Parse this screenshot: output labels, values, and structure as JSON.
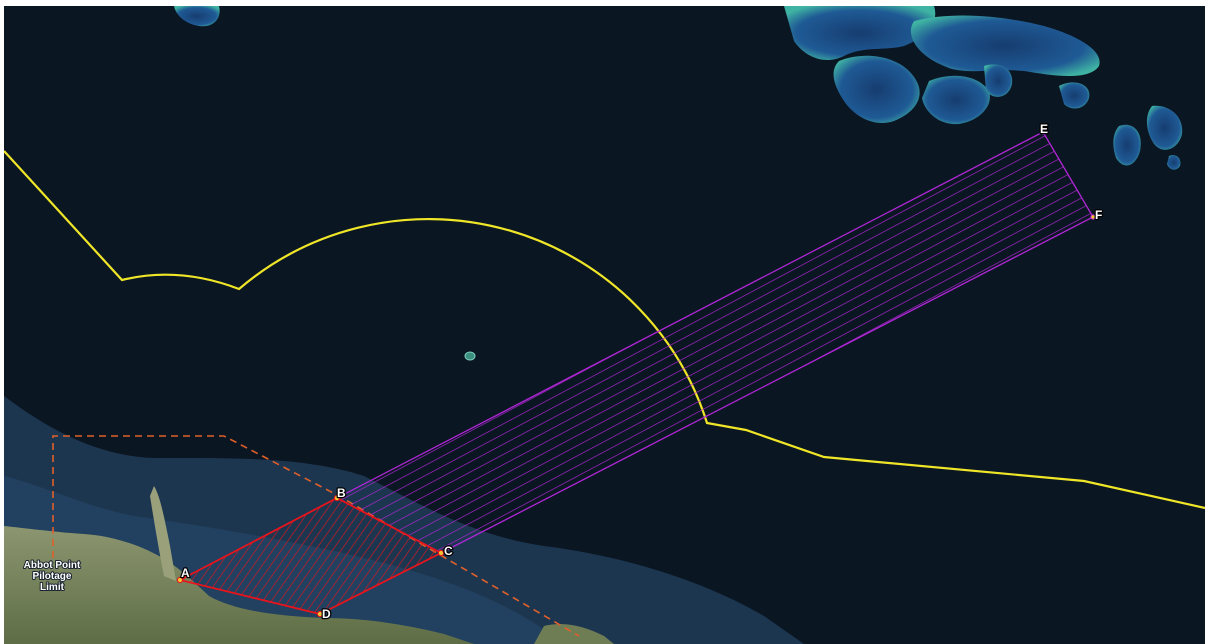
{
  "map": {
    "area_name": "Abbot Point",
    "points": [
      {
        "id": "A",
        "label": "A"
      },
      {
        "id": "B",
        "label": "B"
      },
      {
        "id": "C",
        "label": "C"
      },
      {
        "id": "D",
        "label": "D"
      },
      {
        "id": "E",
        "label": "E"
      },
      {
        "id": "F",
        "label": "F"
      }
    ],
    "place_label": {
      "lines": [
        "Abbot Point",
        "Pilotage",
        "Limit"
      ]
    },
    "colors": {
      "ocean": "#0b1623",
      "shallow_water": "#1f3a55",
      "land": "#7d8a5e",
      "reef_deep": "#1f4f8a",
      "reef_light": "#3fb3a3",
      "boundary_line": "#f0e628",
      "red_zone": "#e8141c",
      "purple_zone": "#b026d6",
      "pilotage_limit": "#e0602a",
      "point_marker": "#f2c230"
    }
  }
}
